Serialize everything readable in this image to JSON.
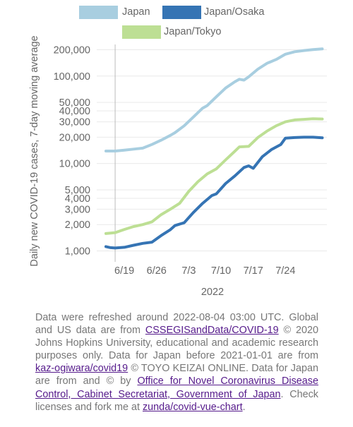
{
  "chart_data": {
    "type": "line",
    "xlabel": "2022",
    "ylabel": "Daily new COVID-19 cases, 7-day moving average",
    "y_scale": "log",
    "ylim": [
      750,
      230000
    ],
    "xlim": [
      "2022-06-13",
      "2022-08-02"
    ],
    "x_ticks": [
      {
        "date": "2022-06-19",
        "label": "6/19"
      },
      {
        "date": "2022-06-26",
        "label": "6/26"
      },
      {
        "date": "2022-07-03",
        "label": "7/3"
      },
      {
        "date": "2022-07-10",
        "label": "7/10"
      },
      {
        "date": "2022-07-17",
        "label": "7/17"
      },
      {
        "date": "2022-07-24",
        "label": "7/24"
      }
    ],
    "y_ticks": [
      {
        "value": 1000,
        "label": "1,000"
      },
      {
        "value": 2000,
        "label": "2,000"
      },
      {
        "value": 3000,
        "label": "3,000"
      },
      {
        "value": 4000,
        "label": "4,000"
      },
      {
        "value": 5000,
        "label": "5,000"
      },
      {
        "value": 10000,
        "label": "10,000"
      },
      {
        "value": 20000,
        "label": "20,000"
      },
      {
        "value": 30000,
        "label": "30,000"
      },
      {
        "value": 40000,
        "label": "40,000"
      },
      {
        "value": 50000,
        "label": "50,000"
      },
      {
        "value": 100000,
        "label": "100,000"
      },
      {
        "value": 200000,
        "label": "200,000"
      }
    ],
    "grid": true,
    "legend_position": "top",
    "series": [
      {
        "name": "Japan",
        "color": "#a8cee0",
        "points": [
          [
            "2022-06-15",
            13900
          ],
          [
            "2022-06-17",
            13900
          ],
          [
            "2022-06-19",
            14200
          ],
          [
            "2022-06-21",
            14600
          ],
          [
            "2022-06-23",
            15000
          ],
          [
            "2022-06-25",
            16500
          ],
          [
            "2022-06-27",
            18500
          ],
          [
            "2022-06-29",
            21000
          ],
          [
            "2022-06-30",
            22500
          ],
          [
            "2022-07-02",
            27000
          ],
          [
            "2022-07-04",
            34000
          ],
          [
            "2022-07-06",
            43000
          ],
          [
            "2022-07-07",
            46000
          ],
          [
            "2022-07-09",
            58000
          ],
          [
            "2022-07-11",
            73000
          ],
          [
            "2022-07-13",
            86000
          ],
          [
            "2022-07-14",
            92000
          ],
          [
            "2022-07-15",
            90000
          ],
          [
            "2022-07-16",
            98000
          ],
          [
            "2022-07-18",
            120000
          ],
          [
            "2022-07-20",
            140000
          ],
          [
            "2022-07-22",
            155000
          ],
          [
            "2022-07-24",
            178000
          ],
          [
            "2022-07-26",
            190000
          ],
          [
            "2022-07-28",
            196000
          ],
          [
            "2022-07-30",
            201000
          ],
          [
            "2022-08-01",
            205000
          ]
        ]
      },
      {
        "name": "Japan/Osaka",
        "color": "#3574b4",
        "points": [
          [
            "2022-06-15",
            1120
          ],
          [
            "2022-06-16",
            1090
          ],
          [
            "2022-06-17",
            1080
          ],
          [
            "2022-06-18",
            1090
          ],
          [
            "2022-06-19",
            1100
          ],
          [
            "2022-06-21",
            1160
          ],
          [
            "2022-06-23",
            1220
          ],
          [
            "2022-06-25",
            1260
          ],
          [
            "2022-06-27",
            1500
          ],
          [
            "2022-06-29",
            1750
          ],
          [
            "2022-06-30",
            1950
          ],
          [
            "2022-07-02",
            2100
          ],
          [
            "2022-07-04",
            2750
          ],
          [
            "2022-07-06",
            3500
          ],
          [
            "2022-07-08",
            4300
          ],
          [
            "2022-07-09",
            4500
          ],
          [
            "2022-07-11",
            5900
          ],
          [
            "2022-07-13",
            7200
          ],
          [
            "2022-07-15",
            9000
          ],
          [
            "2022-07-16",
            9400
          ],
          [
            "2022-07-17",
            8800
          ],
          [
            "2022-07-19",
            12000
          ],
          [
            "2022-07-21",
            14500
          ],
          [
            "2022-07-23",
            16500
          ],
          [
            "2022-07-24",
            19500
          ],
          [
            "2022-07-26",
            19800
          ],
          [
            "2022-07-28",
            20000
          ],
          [
            "2022-07-30",
            20000
          ],
          [
            "2022-08-01",
            19700
          ]
        ]
      },
      {
        "name": "Japan/Tokyo",
        "color": "#bddf94",
        "points": [
          [
            "2022-06-15",
            1580
          ],
          [
            "2022-06-17",
            1620
          ],
          [
            "2022-06-19",
            1760
          ],
          [
            "2022-06-21",
            1900
          ],
          [
            "2022-06-23",
            2000
          ],
          [
            "2022-06-25",
            2150
          ],
          [
            "2022-06-27",
            2600
          ],
          [
            "2022-06-29",
            3000
          ],
          [
            "2022-07-01",
            3500
          ],
          [
            "2022-07-03",
            4800
          ],
          [
            "2022-07-05",
            6200
          ],
          [
            "2022-07-07",
            7600
          ],
          [
            "2022-07-09",
            8700
          ],
          [
            "2022-07-11",
            11000
          ],
          [
            "2022-07-13",
            13800
          ],
          [
            "2022-07-14",
            15500
          ],
          [
            "2022-07-16",
            15700
          ],
          [
            "2022-07-18",
            19800
          ],
          [
            "2022-07-20",
            23500
          ],
          [
            "2022-07-22",
            27000
          ],
          [
            "2022-07-24",
            30000
          ],
          [
            "2022-07-26",
            31500
          ],
          [
            "2022-07-28",
            32000
          ],
          [
            "2022-07-30",
            32500
          ],
          [
            "2022-08-01",
            32300
          ]
        ]
      }
    ],
    "cursor_date": "2022-06-17"
  },
  "notice": {
    "text_1": "Data were refreshed around 2022-08-04 03:00 UTC. Global and US data are from ",
    "link_1": "CSSEGISandData/COVID-19",
    "text_2": " © 2020 Johns Hopkins University, educational and academic research purposes only. Data for Japan before 2021-01-01 are from ",
    "link_2": "kaz-ogiwara/covid19",
    "text_3": " © TOYO KEIZAI ONLINE. Data for Japan are from and © by ",
    "link_3": "Office for Novel Coronavirus Disease Control, Cabinet Secretariat, Government of Japan",
    "text_4": ". Check licenses and fork me at ",
    "link_4": "zunda/covid-vue-chart",
    "text_5": "."
  }
}
